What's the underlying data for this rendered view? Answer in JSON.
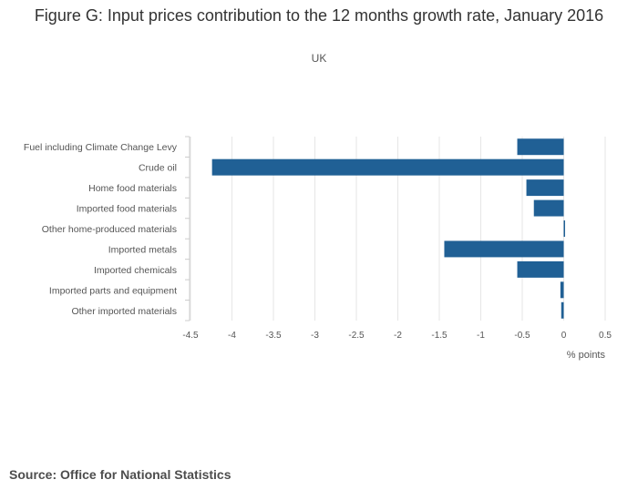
{
  "header": {
    "title": "Figure G: Input prices contribution to the 12 months growth rate, January 2016",
    "subtitle": "UK"
  },
  "footer": {
    "source": "Source: Office for National Statistics"
  },
  "colors": {
    "bar": "#206095",
    "grid": "#e6e6e6",
    "axis_text": "#555555"
  },
  "chart_data": {
    "type": "bar",
    "orientation": "horizontal",
    "title": "Figure G: Input prices contribution to the 12 months growth rate, January 2016",
    "subtitle": "UK",
    "xlabel": "% points",
    "ylabel": "",
    "xlim": [
      -4.5,
      0.5
    ],
    "xticks": [
      -4.5,
      -4,
      -3.5,
      -3,
      -2.5,
      -2,
      -1.5,
      -1,
      -0.5,
      0,
      0.5
    ],
    "xtick_labels": [
      "-4.5",
      "-4",
      "-3.5",
      "-3",
      "-2.5",
      "-2",
      "-1.5",
      "-1",
      "-0.5",
      "0",
      "0.5"
    ],
    "grid": true,
    "categories": [
      "Fuel including Climate Change Levy",
      "Crude oil",
      "Home food materials",
      "Imported food materials",
      "Other home-produced materials",
      "Imported metals",
      "Imported chemicals",
      "Imported parts and equipment",
      "Other imported materials"
    ],
    "values": [
      -0.56,
      -4.24,
      -0.45,
      -0.36,
      0.01,
      -1.44,
      -0.56,
      -0.04,
      -0.03
    ]
  }
}
